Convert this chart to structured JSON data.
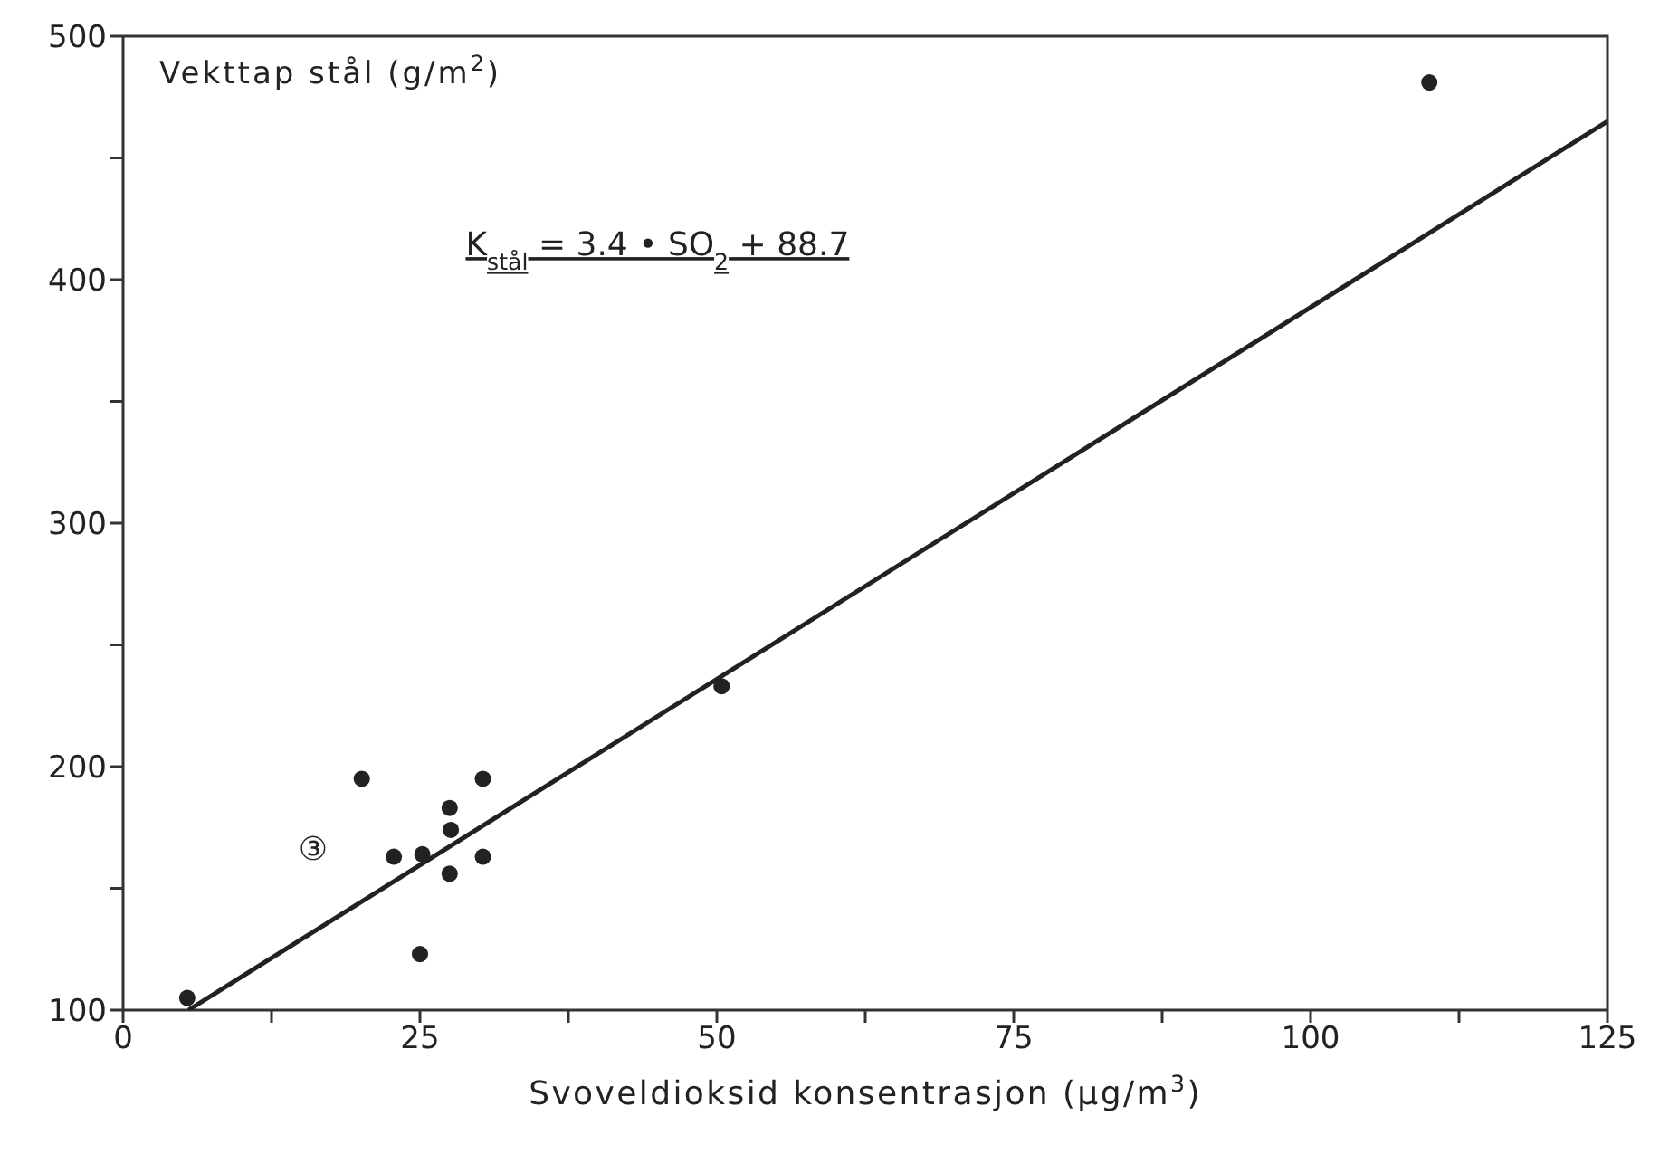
{
  "chart_data": {
    "type": "scatter",
    "ylabel": "Vekttap stål (g/m$^{2}$)",
    "xlabel": "Svoveldioksid konsentrasjon (µg/m$^{3}$)",
    "xlim": [
      0,
      125
    ],
    "xticks": [
      0,
      {
        "value": 12.5,
        "label": null
      },
      25,
      {
        "value": 37.5,
        "label": null
      },
      50,
      {
        "value": 62.5,
        "label": null
      },
      75,
      {
        "value": 87.5,
        "label": null
      },
      100,
      {
        "value": 112.5,
        "label": null
      },
      125
    ],
    "ylim": [
      100,
      500
    ],
    "yticks": [
      100,
      {
        "value": 150,
        "label": null
      },
      200,
      {
        "value": 250,
        "label": null
      },
      300,
      {
        "value": 350,
        "label": null
      },
      400,
      {
        "value": 450,
        "label": null
      },
      500
    ],
    "marker": "circle",
    "grid": false,
    "series": [
      {
        "type": "scatter",
        "color": "#222222",
        "x": [
          5.4,
          20.1,
          22.8,
          25.2,
          25,
          27.5,
          27.6,
          27.5,
          30.3,
          30.3,
          50.4,
          110
        ],
        "values": [
          105,
          195,
          163,
          164,
          123,
          183,
          174,
          156,
          195,
          163,
          233,
          481
        ]
      },
      {
        "type": "line",
        "color": "#222222",
        "marker": "none",
        "x": [
          5.5,
          125
        ],
        "values": [
          100,
          465
        ]
      }
    ],
    "annotations": [
      "K$_{stål}$ = 3.4 • SO$_{2}$ + 88.7",
      "③"
    ]
  }
}
